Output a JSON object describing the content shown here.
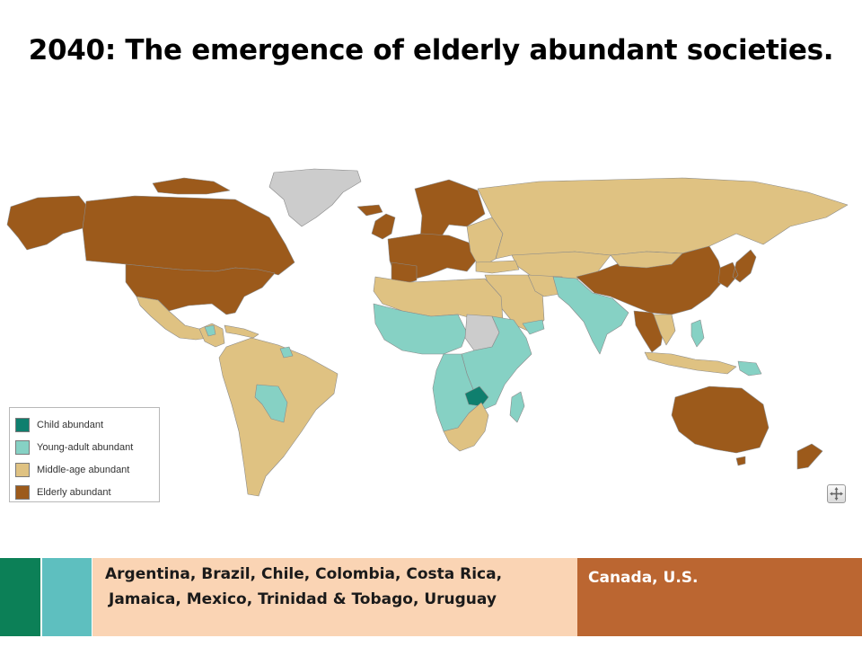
{
  "title": "2040: The emergence of elderly abundant societies.",
  "colors": {
    "child": "#0f7f6e",
    "young_adult": "#86d1c4",
    "middle_age": "#dfc282",
    "elderly": "#9c5a1b",
    "no_data": "#cccccc",
    "border": "#8a8a8a",
    "band_child": "#0c8057",
    "band_young": "#5ebfbf",
    "band_middle": "#fad4b4",
    "band_elderly": "#bb6631"
  },
  "legend": [
    {
      "key": "child",
      "label": "Child abundant"
    },
    {
      "key": "young_adult",
      "label": "Young-adult abundant"
    },
    {
      "key": "middle_age",
      "label": "Middle-age abundant"
    },
    {
      "key": "elderly",
      "label": "Elderly abundant"
    }
  ],
  "map_control": {
    "icon": "compass-control-icon"
  },
  "footer": {
    "middle_line1": "Argentina, Brazil, Chile, Colombia, Costa Rica,",
    "middle_line2": "Jamaica, Mexico, Trinidad & Tobago, Uruguay",
    "elderly": "Canada, U.S."
  }
}
